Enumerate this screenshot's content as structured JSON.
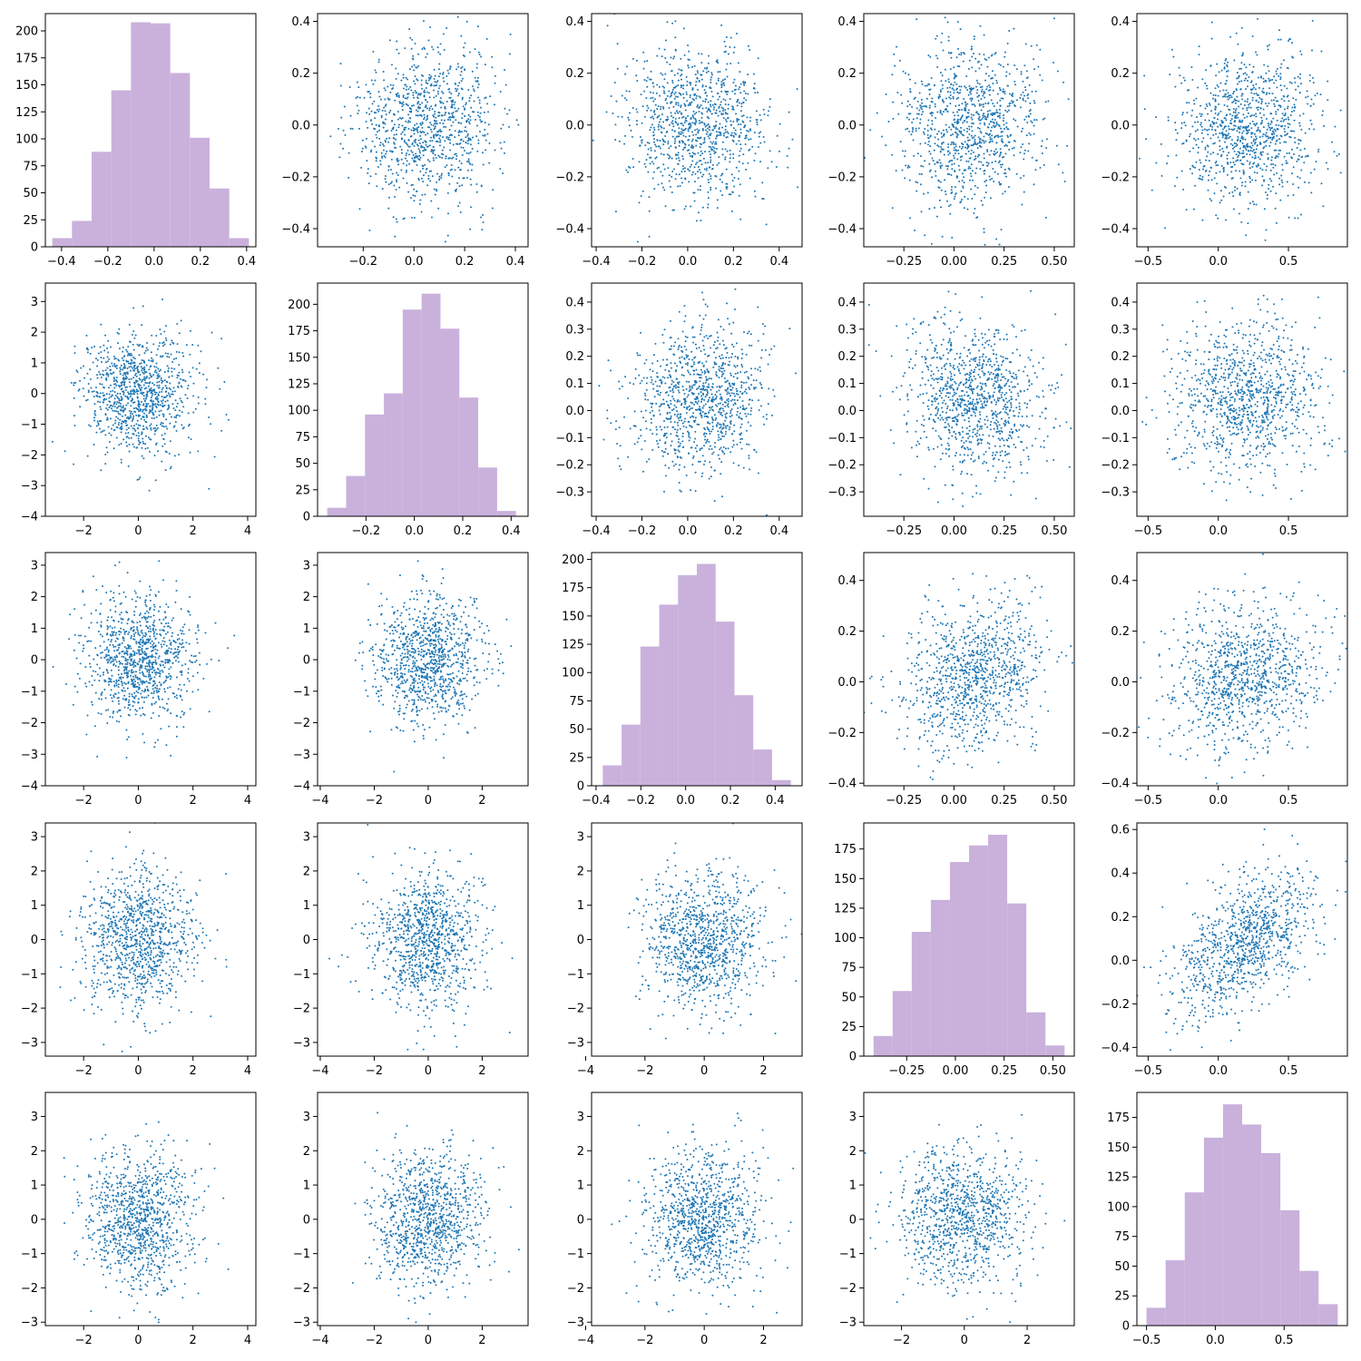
{
  "colors": {
    "histogram": "#c9b1dc",
    "scatter": "#1f77b4",
    "axis": "#000000"
  },
  "chart_data": [
    {
      "type": "bar",
      "histogram": true,
      "row": 0,
      "col": 0,
      "bin_edges": [
        -0.44,
        -0.355,
        -0.27,
        -0.185,
        -0.1,
        -0.015,
        0.07,
        0.155,
        0.24,
        0.325,
        0.41
      ],
      "values": [
        8,
        24,
        88,
        145,
        208,
        207,
        161,
        101,
        54,
        8
      ],
      "xlim": [
        -0.47,
        0.44
      ],
      "ylim": [
        0,
        216
      ],
      "xticks": [
        -0.4,
        -0.2,
        0.0,
        0.2,
        0.4
      ],
      "xtick_labels": [
        "−0.4",
        "−0.2",
        "0.0",
        "0.2",
        "0.4"
      ],
      "yticks": [
        0,
        25,
        50,
        75,
        100,
        125,
        150,
        175,
        200
      ],
      "ytick_labels": [
        "0",
        "25",
        "50",
        "75",
        "100",
        "125",
        "150",
        "175",
        "200"
      ]
    },
    {
      "type": "scatter",
      "row": 0,
      "col": 1,
      "xmean": 0.05,
      "xsd": 0.14,
      "ymean": 0.0,
      "ysd": 0.15,
      "corr": 0.1,
      "xlim": [
        -0.38,
        0.45
      ],
      "ylim": [
        -0.47,
        0.43
      ],
      "xticks": [
        -0.2,
        0.0,
        0.2,
        0.4
      ],
      "xtick_labels": [
        "−0.2",
        "0.0",
        "0.2",
        "0.4"
      ],
      "yticks": [
        -0.4,
        -0.2,
        0.0,
        0.2,
        0.4
      ],
      "ytick_labels": [
        "−0.4",
        "−0.2",
        "0.0",
        "0.2",
        "0.4"
      ]
    },
    {
      "type": "scatter",
      "row": 0,
      "col": 2,
      "xmean": 0.04,
      "xsd": 0.15,
      "ymean": 0.0,
      "ysd": 0.15,
      "corr": 0.0,
      "xlim": [
        -0.42,
        0.5
      ],
      "ylim": [
        -0.47,
        0.43
      ],
      "xticks": [
        -0.4,
        -0.2,
        0.0,
        0.2,
        0.4
      ],
      "xtick_labels": [
        "−0.4",
        "−0.2",
        "0.0",
        "0.2",
        "0.4"
      ],
      "yticks": [
        -0.4,
        -0.2,
        0.0,
        0.2,
        0.4
      ],
      "ytick_labels": [
        "−0.4",
        "−0.2",
        "0.0",
        "0.2",
        "0.4"
      ]
    },
    {
      "type": "scatter",
      "row": 0,
      "col": 3,
      "xmean": 0.08,
      "xsd": 0.17,
      "ymean": 0.0,
      "ysd": 0.15,
      "corr": 0.05,
      "xlim": [
        -0.45,
        0.6
      ],
      "ylim": [
        -0.47,
        0.43
      ],
      "xticks": [
        -0.25,
        0.0,
        0.25,
        0.5
      ],
      "xtick_labels": [
        "−0.25",
        "0.00",
        "0.25",
        "0.50"
      ],
      "yticks": [
        -0.4,
        -0.2,
        0.0,
        0.2,
        0.4
      ],
      "ytick_labels": [
        "−0.4",
        "−0.2",
        "0.0",
        "0.2",
        "0.4"
      ]
    },
    {
      "type": "scatter",
      "row": 0,
      "col": 4,
      "xmean": 0.2,
      "xsd": 0.26,
      "ymean": 0.0,
      "ysd": 0.15,
      "corr": 0.0,
      "xlim": [
        -0.58,
        0.92
      ],
      "ylim": [
        -0.47,
        0.43
      ],
      "xticks": [
        -0.5,
        0.0,
        0.5
      ],
      "xtick_labels": [
        "−0.5",
        "0.0",
        "0.5"
      ],
      "yticks": [
        -0.4,
        -0.2,
        0.0,
        0.2,
        0.4
      ],
      "ytick_labels": [
        "−0.4",
        "−0.2",
        "0.0",
        "0.2",
        "0.4"
      ]
    },
    {
      "type": "scatter",
      "row": 1,
      "col": 0,
      "xmean": 0.0,
      "xsd": 1.0,
      "ymean": 0.0,
      "ysd": 1.0,
      "corr": 0.0,
      "xlim": [
        -3.4,
        4.3
      ],
      "ylim": [
        -4.0,
        3.6
      ],
      "xticks": [
        -2,
        0,
        2,
        4
      ],
      "xtick_labels": [
        "−2",
        "0",
        "2",
        "4"
      ],
      "yticks": [
        -4,
        -3,
        -2,
        -1,
        0,
        1,
        2,
        3
      ],
      "ytick_labels": [
        "−4",
        "−3",
        "−2",
        "−1",
        "0",
        "1",
        "2",
        "3"
      ]
    },
    {
      "type": "bar",
      "histogram": true,
      "row": 1,
      "col": 1,
      "bin_edges": [
        -0.36,
        -0.282,
        -0.204,
        -0.126,
        -0.048,
        0.03,
        0.108,
        0.186,
        0.264,
        0.342,
        0.42
      ],
      "values": [
        8,
        38,
        96,
        116,
        195,
        210,
        177,
        112,
        46,
        5
      ],
      "xlim": [
        -0.4,
        0.47
      ],
      "ylim": [
        0,
        220
      ],
      "xticks": [
        -0.2,
        0.0,
        0.2,
        0.4
      ],
      "xtick_labels": [
        "−0.2",
        "0.0",
        "0.2",
        "0.4"
      ],
      "yticks": [
        0,
        25,
        50,
        75,
        100,
        125,
        150,
        175,
        200
      ],
      "ytick_labels": [
        "0",
        "25",
        "50",
        "75",
        "100",
        "125",
        "150",
        "175",
        "200"
      ]
    },
    {
      "type": "scatter",
      "row": 1,
      "col": 2,
      "xmean": 0.05,
      "xsd": 0.15,
      "ymean": 0.05,
      "ysd": 0.14,
      "corr": 0.1,
      "xlim": [
        -0.42,
        0.5
      ],
      "ylim": [
        -0.39,
        0.47
      ],
      "xticks": [
        -0.4,
        -0.2,
        0.0,
        0.2,
        0.4
      ],
      "xtick_labels": [
        "−0.4",
        "−0.2",
        "0.0",
        "0.2",
        "0.4"
      ],
      "yticks": [
        -0.3,
        -0.2,
        -0.1,
        0.0,
        0.1,
        0.2,
        0.3,
        0.4
      ],
      "ytick_labels": [
        "−0.3",
        "−0.2",
        "−0.1",
        "0.0",
        "0.1",
        "0.2",
        "0.3",
        "0.4"
      ]
    },
    {
      "type": "scatter",
      "row": 1,
      "col": 3,
      "xmean": 0.1,
      "xsd": 0.17,
      "ymean": 0.05,
      "ysd": 0.14,
      "corr": -0.15,
      "xlim": [
        -0.45,
        0.6
      ],
      "ylim": [
        -0.39,
        0.47
      ],
      "xticks": [
        -0.25,
        0.0,
        0.25,
        0.5
      ],
      "xtick_labels": [
        "−0.25",
        "0.00",
        "0.25",
        "0.50"
      ],
      "yticks": [
        -0.3,
        -0.2,
        -0.1,
        0.0,
        0.1,
        0.2,
        0.3,
        0.4
      ],
      "ytick_labels": [
        "−0.3",
        "−0.2",
        "−0.1",
        "0.0",
        "0.1",
        "0.2",
        "0.3",
        "0.4"
      ]
    },
    {
      "type": "scatter",
      "row": 1,
      "col": 4,
      "xmean": 0.2,
      "xsd": 0.26,
      "ymean": 0.05,
      "ysd": 0.14,
      "corr": 0.0,
      "xlim": [
        -0.58,
        0.92
      ],
      "ylim": [
        -0.39,
        0.47
      ],
      "xticks": [
        -0.5,
        0.0,
        0.5
      ],
      "xtick_labels": [
        "−0.5",
        "0.0",
        "0.5"
      ],
      "yticks": [
        -0.3,
        -0.2,
        -0.1,
        0.0,
        0.1,
        0.2,
        0.3,
        0.4
      ],
      "ytick_labels": [
        "−0.3",
        "−0.2",
        "−0.1",
        "0.0",
        "0.1",
        "0.2",
        "0.3",
        "0.4"
      ]
    },
    {
      "type": "scatter",
      "row": 2,
      "col": 0,
      "xmean": 0.0,
      "xsd": 1.0,
      "ymean": 0.0,
      "ysd": 1.0,
      "corr": 0.0,
      "xlim": [
        -3.4,
        4.3
      ],
      "ylim": [
        -4.0,
        3.4
      ],
      "xticks": [
        -2,
        0,
        2,
        4
      ],
      "xtick_labels": [
        "−2",
        "0",
        "2",
        "4"
      ],
      "yticks": [
        -4,
        -3,
        -2,
        -1,
        0,
        1,
        2,
        3
      ],
      "ytick_labels": [
        "−4",
        "−3",
        "−2",
        "−1",
        "0",
        "1",
        "2",
        "3"
      ]
    },
    {
      "type": "scatter",
      "row": 2,
      "col": 1,
      "xmean": 0.0,
      "xsd": 1.0,
      "ymean": 0.0,
      "ysd": 1.0,
      "corr": 0.0,
      "xlim": [
        -4.1,
        3.7
      ],
      "ylim": [
        -4.0,
        3.4
      ],
      "xticks": [
        -4,
        -2,
        0,
        2
      ],
      "xtick_labels": [
        "−4",
        "−2",
        "0",
        "2"
      ],
      "yticks": [
        -4,
        -3,
        -2,
        -1,
        0,
        1,
        2,
        3
      ],
      "ytick_labels": [
        "−4",
        "−3",
        "−2",
        "−1",
        "0",
        "1",
        "2",
        "3"
      ]
    },
    {
      "type": "bar",
      "histogram": true,
      "row": 2,
      "col": 2,
      "bin_edges": [
        -0.37,
        -0.286,
        -0.202,
        -0.118,
        -0.034,
        0.05,
        0.134,
        0.218,
        0.302,
        0.386,
        0.47
      ],
      "values": [
        18,
        54,
        123,
        160,
        186,
        196,
        145,
        80,
        32,
        5
      ],
      "xlim": [
        -0.42,
        0.52
      ],
      "ylim": [
        0,
        206
      ],
      "xticks": [
        -0.4,
        -0.2,
        0.0,
        0.2,
        0.4
      ],
      "xtick_labels": [
        "−0.4",
        "−0.2",
        "0.0",
        "0.2",
        "0.4"
      ],
      "yticks": [
        0,
        25,
        50,
        75,
        100,
        125,
        150,
        175,
        200
      ],
      "ytick_labels": [
        "0",
        "25",
        "50",
        "75",
        "100",
        "125",
        "150",
        "175",
        "200"
      ]
    },
    {
      "type": "scatter",
      "row": 2,
      "col": 3,
      "xmean": 0.1,
      "xsd": 0.17,
      "ymean": 0.03,
      "ysd": 0.15,
      "corr": 0.2,
      "xlim": [
        -0.45,
        0.6
      ],
      "ylim": [
        -0.41,
        0.51
      ],
      "xticks": [
        -0.25,
        0.0,
        0.25,
        0.5
      ],
      "xtick_labels": [
        "−0.25",
        "0.00",
        "0.25",
        "0.50"
      ],
      "yticks": [
        -0.4,
        -0.2,
        0.0,
        0.2,
        0.4
      ],
      "ytick_labels": [
        "−0.4",
        "−0.2",
        "0.0",
        "0.2",
        "0.4"
      ]
    },
    {
      "type": "scatter",
      "row": 2,
      "col": 4,
      "xmean": 0.2,
      "xsd": 0.26,
      "ymean": 0.03,
      "ysd": 0.15,
      "corr": 0.15,
      "xlim": [
        -0.58,
        0.92
      ],
      "ylim": [
        -0.41,
        0.51
      ],
      "xticks": [
        -0.5,
        0.0,
        0.5
      ],
      "xtick_labels": [
        "−0.5",
        "0.0",
        "0.5"
      ],
      "yticks": [
        -0.4,
        -0.2,
        0.0,
        0.2,
        0.4
      ],
      "ytick_labels": [
        "−0.4",
        "−0.2",
        "0.0",
        "0.2",
        "0.4"
      ]
    },
    {
      "type": "scatter",
      "row": 3,
      "col": 0,
      "xmean": 0.0,
      "xsd": 1.0,
      "ymean": 0.0,
      "ysd": 1.0,
      "corr": 0.0,
      "xlim": [
        -3.4,
        4.3
      ],
      "ylim": [
        -3.4,
        3.4
      ],
      "xticks": [
        -2,
        0,
        2,
        4
      ],
      "xtick_labels": [
        "−2",
        "0",
        "2",
        "4"
      ],
      "yticks": [
        -3,
        -2,
        -1,
        0,
        1,
        2,
        3
      ],
      "ytick_labels": [
        "−3",
        "−2",
        "−1",
        "0",
        "1",
        "2",
        "3"
      ]
    },
    {
      "type": "scatter",
      "row": 3,
      "col": 1,
      "xmean": 0.0,
      "xsd": 1.0,
      "ymean": 0.0,
      "ysd": 1.0,
      "corr": 0.0,
      "xlim": [
        -4.1,
        3.7
      ],
      "ylim": [
        -3.4,
        3.4
      ],
      "xticks": [
        -4,
        -2,
        0,
        2
      ],
      "xtick_labels": [
        "−4",
        "−2",
        "0",
        "2"
      ],
      "yticks": [
        -3,
        -2,
        -1,
        0,
        1,
        2,
        3
      ],
      "ytick_labels": [
        "−3",
        "−2",
        "−1",
        "0",
        "1",
        "2",
        "3"
      ]
    },
    {
      "type": "scatter",
      "row": 3,
      "col": 2,
      "xmean": 0.0,
      "xsd": 1.0,
      "ymean": 0.0,
      "ysd": 1.0,
      "corr": 0.0,
      "xlim": [
        -3.8,
        3.3
      ],
      "ylim": [
        -3.4,
        3.4
      ],
      "xticks": [
        -4,
        -2,
        0,
        2
      ],
      "xtick_labels": [
        "−4",
        "−2",
        "0",
        "2"
      ],
      "yticks": [
        -3,
        -2,
        -1,
        0,
        1,
        2,
        3
      ],
      "ytick_labels": [
        "−3",
        "−2",
        "−1",
        "0",
        "1",
        "2",
        "3"
      ]
    },
    {
      "type": "bar",
      "histogram": true,
      "row": 3,
      "col": 3,
      "bin_edges": [
        -0.42,
        -0.322,
        -0.224,
        -0.126,
        -0.028,
        0.07,
        0.168,
        0.266,
        0.364,
        0.462,
        0.56
      ],
      "values": [
        17,
        55,
        105,
        132,
        164,
        178,
        187,
        129,
        37,
        9
      ],
      "xlim": [
        -0.47,
        0.61
      ],
      "ylim": [
        0,
        197
      ],
      "xticks": [
        -0.25,
        0.0,
        0.25,
        0.5
      ],
      "xtick_labels": [
        "−0.25",
        "0.00",
        "0.25",
        "0.50"
      ],
      "yticks": [
        0,
        25,
        50,
        75,
        100,
        125,
        150,
        175
      ],
      "ytick_labels": [
        "0",
        "25",
        "50",
        "75",
        "100",
        "125",
        "150",
        "175"
      ]
    },
    {
      "type": "scatter",
      "row": 3,
      "col": 4,
      "xmean": 0.2,
      "xsd": 0.26,
      "ymean": 0.08,
      "ysd": 0.17,
      "corr": 0.55,
      "xlim": [
        -0.58,
        0.92
      ],
      "ylim": [
        -0.44,
        0.63
      ],
      "xticks": [
        -0.5,
        0.0,
        0.5
      ],
      "xtick_labels": [
        "−0.5",
        "0.0",
        "0.5"
      ],
      "yticks": [
        -0.4,
        -0.2,
        0.0,
        0.2,
        0.4,
        0.6
      ],
      "ytick_labels": [
        "−0.4",
        "−0.2",
        "0.0",
        "0.2",
        "0.4",
        "0.6"
      ]
    },
    {
      "type": "scatter",
      "row": 4,
      "col": 0,
      "xmean": 0.0,
      "xsd": 1.0,
      "ymean": 0.0,
      "ysd": 1.0,
      "corr": 0.0,
      "xlim": [
        -3.4,
        4.3
      ],
      "ylim": [
        -3.1,
        3.7
      ],
      "xticks": [
        -2,
        0,
        2,
        4
      ],
      "xtick_labels": [
        "−2",
        "0",
        "2",
        "4"
      ],
      "yticks": [
        -3,
        -2,
        -1,
        0,
        1,
        2,
        3
      ],
      "ytick_labels": [
        "−3",
        "−2",
        "−1",
        "0",
        "1",
        "2",
        "3"
      ]
    },
    {
      "type": "scatter",
      "row": 4,
      "col": 1,
      "xmean": 0.0,
      "xsd": 1.0,
      "ymean": 0.0,
      "ysd": 1.0,
      "corr": 0.0,
      "xlim": [
        -4.1,
        3.7
      ],
      "ylim": [
        -3.1,
        3.7
      ],
      "xticks": [
        -4,
        -2,
        0,
        2
      ],
      "xtick_labels": [
        "−4",
        "−2",
        "0",
        "2"
      ],
      "yticks": [
        -3,
        -2,
        -1,
        0,
        1,
        2,
        3
      ],
      "ytick_labels": [
        "−3",
        "−2",
        "−1",
        "0",
        "1",
        "2",
        "3"
      ]
    },
    {
      "type": "scatter",
      "row": 4,
      "col": 2,
      "xmean": 0.0,
      "xsd": 1.0,
      "ymean": 0.0,
      "ysd": 1.0,
      "corr": 0.0,
      "xlim": [
        -3.8,
        3.3
      ],
      "ylim": [
        -3.1,
        3.7
      ],
      "xticks": [
        -4,
        -2,
        0,
        2
      ],
      "xtick_labels": [
        "−4",
        "−2",
        "0",
        "2"
      ],
      "yticks": [
        -3,
        -2,
        -1,
        0,
        1,
        2,
        3
      ],
      "ytick_labels": [
        "−3",
        "−2",
        "−1",
        "0",
        "1",
        "2",
        "3"
      ]
    },
    {
      "type": "scatter",
      "row": 4,
      "col": 3,
      "xmean": 0.0,
      "xsd": 1.0,
      "ymean": 0.0,
      "ysd": 1.0,
      "corr": 0.0,
      "xlim": [
        -3.2,
        3.5
      ],
      "ylim": [
        -3.1,
        3.7
      ],
      "xticks": [
        -2,
        0,
        2
      ],
      "xtick_labels": [
        "−2",
        "0",
        "2"
      ],
      "yticks": [
        -3,
        -2,
        -1,
        0,
        1,
        2,
        3
      ],
      "ytick_labels": [
        "−3",
        "−2",
        "−1",
        "0",
        "1",
        "2",
        "3"
      ]
    },
    {
      "type": "bar",
      "histogram": true,
      "row": 4,
      "col": 4,
      "bin_edges": [
        -0.5,
        -0.361,
        -0.222,
        -0.083,
        0.056,
        0.195,
        0.334,
        0.473,
        0.612,
        0.751,
        0.89
      ],
      "values": [
        15,
        55,
        112,
        158,
        186,
        169,
        145,
        97,
        46,
        18
      ],
      "xlim": [
        -0.57,
        0.96
      ],
      "ylim": [
        0,
        196
      ],
      "xticks": [
        -0.5,
        0.0,
        0.5
      ],
      "xtick_labels": [
        "−0.5",
        "0.0",
        "0.5"
      ],
      "yticks": [
        0,
        25,
        50,
        75,
        100,
        125,
        150,
        175
      ],
      "ytick_labels": [
        "0",
        "25",
        "50",
        "75",
        "100",
        "125",
        "150",
        "175"
      ]
    }
  ]
}
